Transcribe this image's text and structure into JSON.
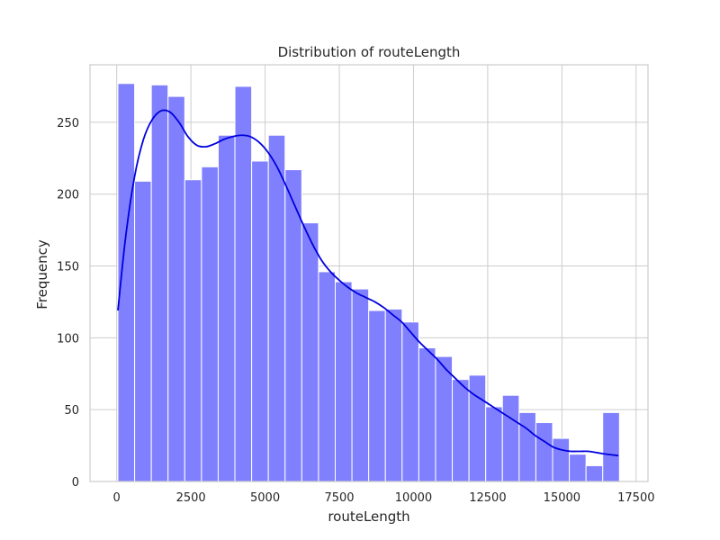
{
  "chart_data": {
    "type": "bar",
    "title": "Distribution of routeLength",
    "xlabel": "routeLength",
    "ylabel": "Frequency",
    "xlim": [
      -900,
      17900
    ],
    "ylim": [
      0,
      290
    ],
    "xticks": [
      0,
      2500,
      5000,
      7500,
      10000,
      12500,
      15000,
      17500
    ],
    "xtick_labels": [
      "0",
      "2500",
      "5000",
      "7500",
      "10000",
      "12500",
      "15000",
      "17500"
    ],
    "yticks": [
      0,
      50,
      100,
      150,
      200,
      250
    ],
    "ytick_labels": [
      "0",
      "50",
      "100",
      "150",
      "200",
      "250"
    ],
    "grid": true,
    "bar_color": "#8080ff",
    "bar_edge_color": "#ffffff",
    "kde_color": "#0000dd",
    "bins": {
      "start": 40,
      "width": 563.3,
      "counts": [
        277,
        209,
        276,
        268,
        210,
        219,
        241,
        275,
        223,
        241,
        217,
        180,
        146,
        139,
        134,
        119,
        120,
        111,
        93,
        87,
        71,
        74,
        52,
        60,
        48,
        41,
        30,
        19,
        11,
        48
      ]
    },
    "kde": {
      "x": [
        40,
        300,
        600,
        900,
        1200,
        1500,
        1800,
        2100,
        2400,
        2700,
        3000,
        3300,
        3600,
        3900,
        4200,
        4500,
        4800,
        5100,
        5400,
        5700,
        6000,
        6300,
        6600,
        6900,
        7200,
        7500,
        7800,
        8100,
        8400,
        8700,
        9000,
        9300,
        9600,
        9900,
        10200,
        10500,
        10800,
        11100,
        11400,
        11700,
        12000,
        12300,
        12600,
        12900,
        13200,
        13500,
        13800,
        14100,
        14400,
        14700,
        15000,
        15300,
        15600,
        15900,
        16200,
        16500,
        16900
      ],
      "y": [
        119,
        170,
        212,
        238,
        252,
        258,
        257,
        250,
        240,
        234,
        233,
        235,
        238,
        240,
        241,
        240,
        236,
        229,
        219,
        206,
        192,
        178,
        165,
        154,
        146,
        140,
        135,
        131,
        128,
        125,
        121,
        116,
        111,
        104,
        97,
        91,
        85,
        78,
        72,
        66,
        61,
        57,
        53,
        49,
        45,
        41,
        37,
        32,
        28,
        24,
        22,
        21,
        21,
        21,
        20,
        19,
        18
      ]
    }
  }
}
